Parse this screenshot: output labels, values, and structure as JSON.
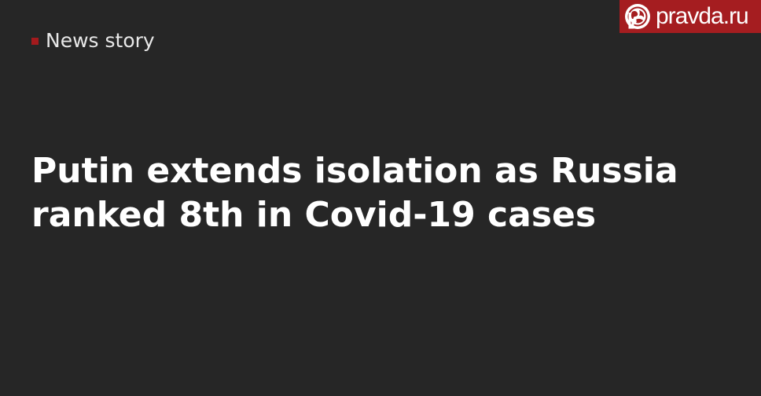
{
  "category": {
    "label": "News story",
    "marker_color": "#a31a1d"
  },
  "logo": {
    "text": "pravda.ru",
    "icon": "pravda-logo-icon",
    "background_color": "#a51d20"
  },
  "headline": {
    "line1": "Putin extends isolation as Russia",
    "line2": "ranked 8th in Covid-19 cases"
  },
  "theme": {
    "background_color": "#262626",
    "text_color": "#ffffff"
  }
}
